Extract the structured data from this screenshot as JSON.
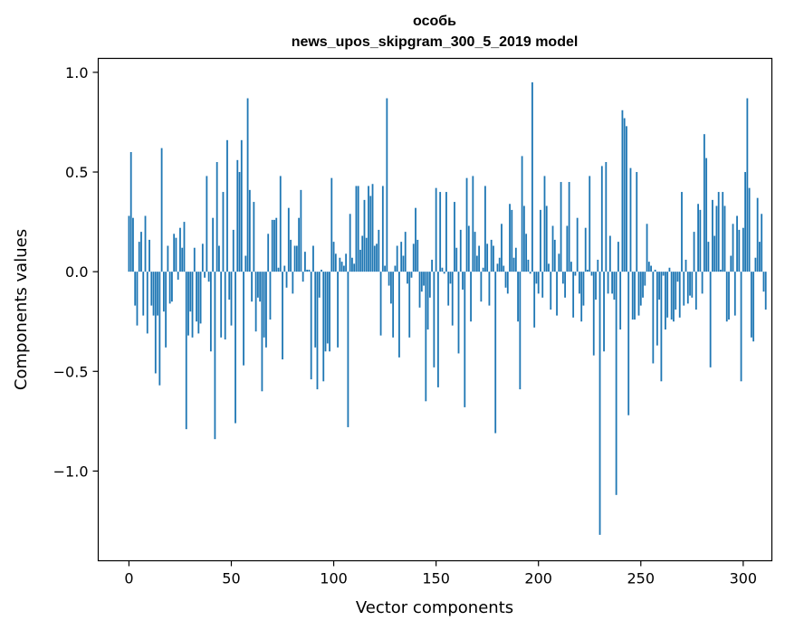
{
  "chart_data": {
    "type": "bar",
    "title_lines": [
      "особь",
      "news_upos_skipgram_300_5_2019 model"
    ],
    "xlabel": "Vector components",
    "ylabel": "Components values",
    "xlim": [
      -15,
      314
    ],
    "ylim": [
      -1.45,
      1.07
    ],
    "x_ticks": [
      0,
      50,
      100,
      150,
      200,
      250,
      300
    ],
    "x_tick_labels": [
      "0",
      "50",
      "100",
      "150",
      "200",
      "250",
      "300"
    ],
    "y_ticks": [
      1.0,
      0.5,
      0.0,
      -0.5,
      -1.0
    ],
    "y_tick_labels": [
      "1.0",
      "0.5",
      "0.0",
      "−0.5",
      "−1.0"
    ],
    "bar_color": "#1f77b4",
    "grid": false,
    "legend": "none",
    "values": [
      0.28,
      0.6,
      0.27,
      -0.17,
      -0.27,
      0.15,
      0.2,
      -0.22,
      0.28,
      -0.31,
      0.16,
      -0.17,
      -0.22,
      -0.51,
      -0.22,
      -0.57,
      0.62,
      -0.2,
      -0.38,
      0.13,
      -0.16,
      -0.15,
      0.19,
      0.17,
      -0.04,
      0.22,
      0.12,
      0.25,
      -0.79,
      -0.32,
      -0.2,
      -0.33,
      0.12,
      -0.25,
      -0.31,
      -0.26,
      0.14,
      -0.03,
      0.48,
      -0.05,
      -0.4,
      0.27,
      -0.84,
      0.55,
      0.13,
      -0.33,
      0.4,
      -0.34,
      0.66,
      -0.14,
      -0.27,
      0.21,
      -0.76,
      0.56,
      0.5,
      0.66,
      -0.47,
      0.08,
      0.87,
      0.41,
      -0.15,
      0.35,
      -0.3,
      -0.13,
      -0.15,
      -0.6,
      -0.33,
      -0.38,
      0.19,
      -0.24,
      0.26,
      0.26,
      0.27,
      0.02,
      0.48,
      -0.44,
      0.03,
      -0.08,
      0.32,
      0.16,
      -0.11,
      0.13,
      0.13,
      0.27,
      0.41,
      -0.05,
      0.1,
      0.01,
      0.01,
      -0.54,
      0.13,
      -0.38,
      -0.59,
      -0.13,
      0.01,
      -0.55,
      -0.4,
      -0.36,
      -0.4,
      0.47,
      0.15,
      0.09,
      -0.38,
      0.07,
      0.05,
      0.03,
      0.09,
      -0.78,
      0.29,
      0.07,
      0.04,
      0.43,
      0.43,
      0.11,
      0.18,
      0.36,
      0.17,
      0.43,
      0.38,
      0.44,
      0.13,
      0.14,
      0.21,
      -0.32,
      0.43,
      0.03,
      0.87,
      -0.07,
      -0.16,
      -0.33,
      0.03,
      0.13,
      -0.43,
      0.15,
      0.08,
      0.2,
      -0.06,
      -0.33,
      -0.03,
      0.14,
      0.32,
      0.16,
      -0.18,
      -0.1,
      -0.07,
      -0.65,
      -0.29,
      -0.13,
      0.06,
      -0.48,
      0.42,
      -0.58,
      0.4,
      0.02,
      -0.01,
      0.4,
      -0.17,
      -0.06,
      -0.27,
      0.35,
      0.12,
      -0.41,
      0.21,
      -0.09,
      -0.68,
      0.47,
      0.23,
      -0.25,
      0.48,
      0.2,
      0.08,
      0.13,
      -0.15,
      0.02,
      0.43,
      0.14,
      -0.17,
      0.16,
      0.13,
      -0.81,
      0.04,
      0.07,
      0.24,
      0.03,
      -0.08,
      -0.11,
      0.34,
      0.31,
      0.07,
      0.12,
      -0.25,
      -0.59,
      0.58,
      0.33,
      0.19,
      0.06,
      -0.01,
      0.95,
      -0.28,
      -0.06,
      -0.11,
      0.31,
      -0.13,
      0.48,
      0.33,
      0.04,
      -0.19,
      0.23,
      0.16,
      -0.22,
      0.09,
      0.45,
      -0.06,
      -0.13,
      0.23,
      0.45,
      0.05,
      -0.23,
      -0.02,
      0.27,
      -0.11,
      -0.25,
      -0.17,
      0.22,
      0.01,
      0.48,
      -0.02,
      -0.42,
      -0.14,
      0.06,
      -1.32,
      0.53,
      -0.4,
      0.55,
      -0.11,
      0.18,
      -0.11,
      -0.14,
      -1.12,
      0.15,
      -0.29,
      0.81,
      0.77,
      0.73,
      -0.72,
      0.52,
      -0.24,
      -0.24,
      0.5,
      -0.22,
      -0.17,
      -0.13,
      -0.07,
      0.24,
      0.05,
      0.03,
      -0.46,
      0.01,
      -0.37,
      -0.14,
      -0.55,
      -0.02,
      -0.29,
      -0.23,
      0.02,
      -0.24,
      -0.25,
      -0.19,
      -0.05,
      -0.23,
      0.4,
      -0.17,
      0.06,
      -0.16,
      -0.12,
      -0.13,
      0.2,
      -0.19,
      0.34,
      0.31,
      -0.11,
      0.69,
      0.57,
      0.15,
      -0.48,
      0.36,
      0.18,
      0.33,
      0.4,
      0.01,
      0.4,
      0.33,
      -0.25,
      -0.24,
      0.08,
      0.24,
      -0.22,
      0.28,
      0.21,
      -0.55,
      0.22,
      0.5,
      0.87,
      0.42,
      -0.33,
      -0.35,
      0.07,
      0.37,
      0.15,
      0.29,
      -0.1,
      -0.19
    ]
  }
}
